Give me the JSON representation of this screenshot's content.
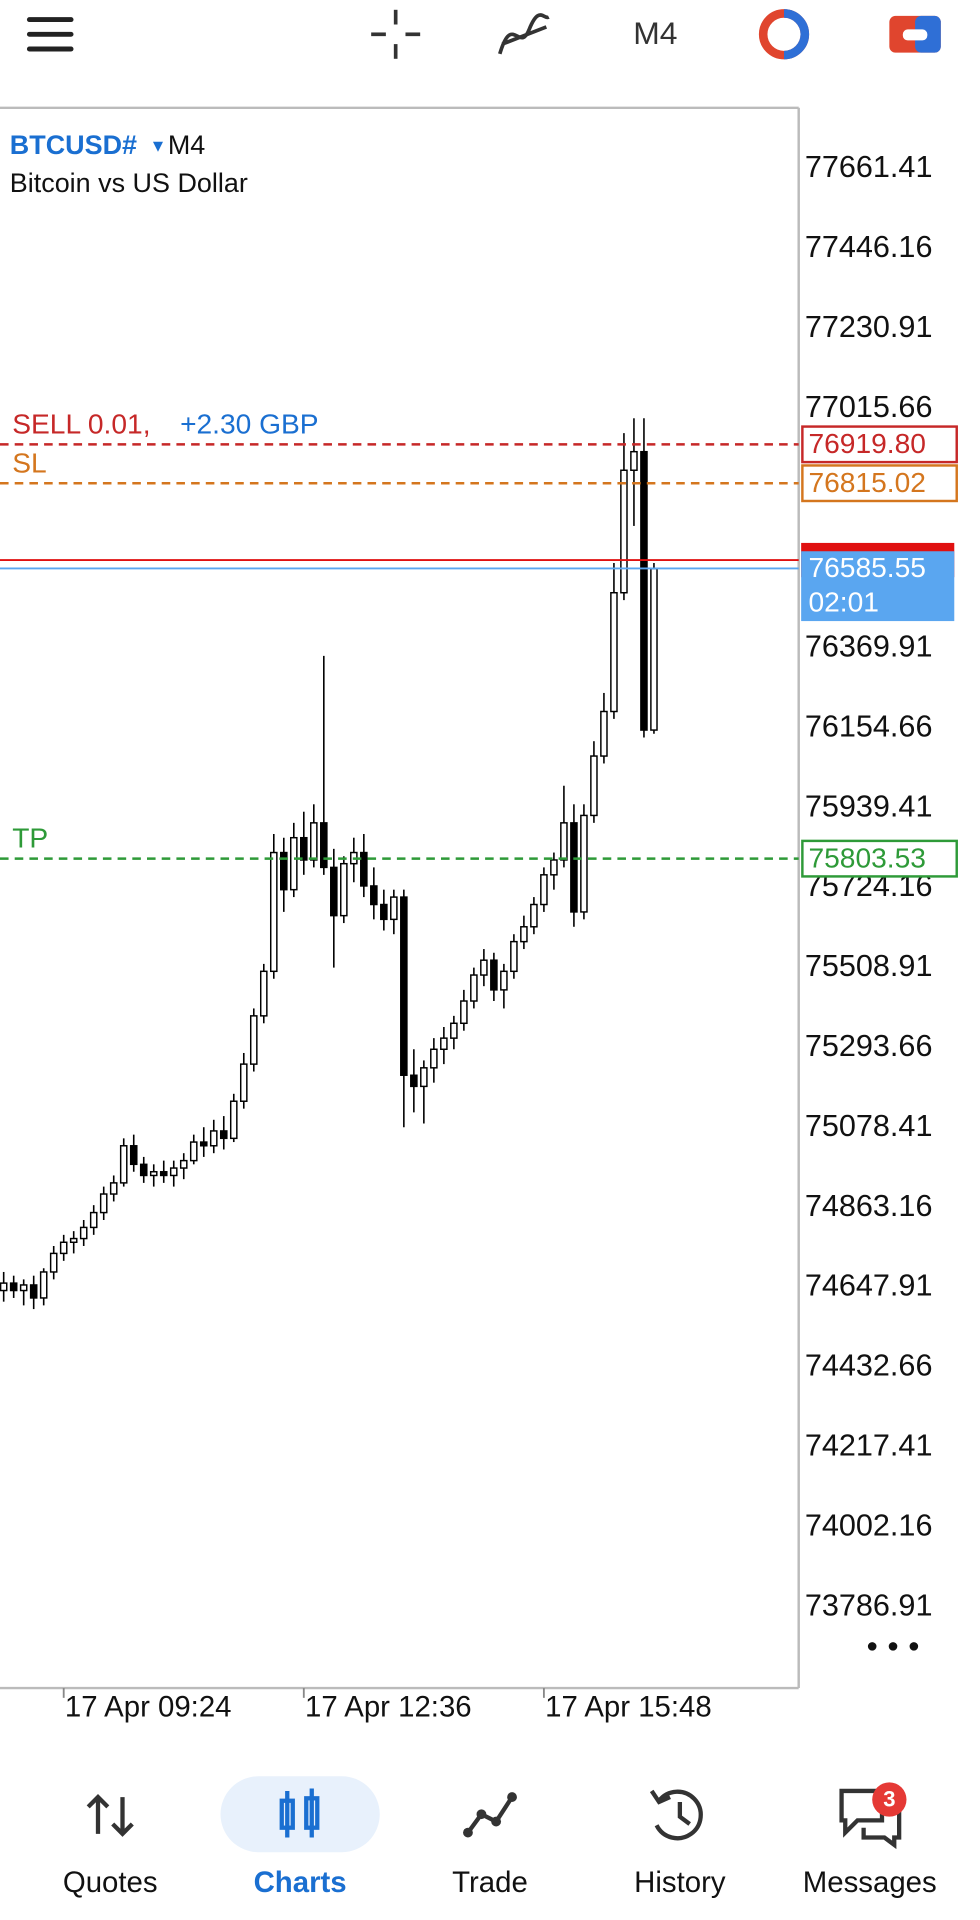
{
  "toolbar": {
    "timeframe": "M4"
  },
  "chart_data": {
    "type": "candlestick",
    "symbol": "BTCUSD#",
    "timeframe": "M4",
    "description": "Bitcoin vs US Dollar",
    "categories": [
      null,
      null,
      null,
      null,
      null,
      null,
      "17 Apr 09:24",
      null,
      null,
      null,
      null,
      null,
      null,
      null,
      null,
      null,
      null,
      null,
      null,
      null,
      null,
      null,
      null,
      null,
      null,
      null,
      null,
      null,
      null,
      null,
      "17 Apr 12:36",
      null,
      null,
      null,
      null,
      null,
      null,
      null,
      null,
      null,
      null,
      null,
      null,
      null,
      null,
      null,
      null,
      null,
      null,
      null,
      null,
      null,
      null,
      null,
      "17 Apr 15:48",
      null,
      null,
      null,
      null,
      null,
      null,
      null,
      null,
      null,
      null,
      null
    ],
    "open": [
      74640,
      74660,
      74640,
      74655,
      74620,
      74690,
      74740,
      74770,
      74780,
      74810,
      74850,
      74900,
      74930,
      75030,
      74980,
      74950,
      74960,
      74950,
      74970,
      74990,
      75040,
      75030,
      75070,
      75050,
      75150,
      75250,
      75380,
      75500,
      75820,
      75720,
      75860,
      75800,
      75900,
      75780,
      75650,
      75790,
      75820,
      75730,
      75680,
      75640,
      75700,
      75220,
      75190,
      75240,
      75290,
      75320,
      75360,
      75420,
      75490,
      75530,
      75450,
      75500,
      75580,
      75620,
      75680,
      75760,
      75800,
      75900,
      75660,
      75920,
      76080,
      76200,
      76520,
      76850,
      76900,
      76150
    ],
    "high": [
      74690,
      74680,
      74670,
      74680,
      74700,
      74760,
      74790,
      74800,
      74830,
      74870,
      74920,
      74950,
      75050,
      75060,
      75000,
      74980,
      74990,
      74990,
      75010,
      75060,
      75080,
      75100,
      75110,
      75170,
      75280,
      75400,
      75520,
      75870,
      75860,
      75900,
      75930,
      75950,
      76350,
      75830,
      75810,
      75860,
      75870,
      75780,
      75720,
      75720,
      75720,
      75290,
      75260,
      75320,
      75350,
      75380,
      75450,
      75510,
      75560,
      75550,
      75520,
      75600,
      75650,
      75700,
      75780,
      75820,
      76000,
      75950,
      75950,
      76120,
      76250,
      76600,
      76950,
      76990,
      76990,
      76600
    ],
    "low": [
      74610,
      74620,
      74600,
      74590,
      74600,
      74670,
      74720,
      74740,
      74760,
      74790,
      74830,
      74880,
      74920,
      74960,
      74930,
      74920,
      74930,
      74920,
      74940,
      74980,
      75000,
      75010,
      75020,
      75040,
      75130,
      75230,
      75360,
      75480,
      75660,
      75700,
      75760,
      75780,
      75760,
      75510,
      75630,
      75740,
      75700,
      75640,
      75610,
      75600,
      75080,
      75120,
      75090,
      75200,
      75250,
      75290,
      75340,
      75400,
      75460,
      75420,
      75400,
      75480,
      75560,
      75600,
      75660,
      75720,
      75780,
      75620,
      75640,
      75900,
      76060,
      76180,
      76500,
      76700,
      76130,
      76140
    ],
    "close": [
      74660,
      74640,
      74655,
      74620,
      74690,
      74740,
      74770,
      74780,
      74810,
      74850,
      74900,
      74930,
      75030,
      74980,
      74950,
      74960,
      74950,
      74970,
      74990,
      75040,
      75030,
      75070,
      75050,
      75150,
      75250,
      75380,
      75500,
      75820,
      75720,
      75860,
      75800,
      75900,
      75780,
      75650,
      75790,
      75820,
      75730,
      75680,
      75640,
      75700,
      75220,
      75190,
      75240,
      75290,
      75320,
      75360,
      75420,
      75490,
      75530,
      75450,
      75500,
      75580,
      75620,
      75680,
      75760,
      75800,
      75900,
      75660,
      75920,
      76080,
      76200,
      76520,
      76850,
      76900,
      76150,
      76585
    ],
    "color": "#000000",
    "up_color": "#ffffff",
    "down_color": "#000000",
    "ylim": [
      73569,
      77826.5
    ],
    "yticks": [
      77661.41,
      77446.16,
      77230.91,
      77015.66,
      76369.91,
      76154.66,
      75939.41,
      75724.16,
      75508.91,
      75293.66,
      75078.41,
      74863.16,
      74647.91,
      74432.66,
      74217.41,
      74002.16,
      73786.91
    ],
    "levels": [
      {
        "label": "SELL 0.01,",
        "price": {
          "value": 76919.8,
          "label": "76919.80"
        },
        "color": "#c62828"
      },
      {
        "label": "SL",
        "price": 76815.02,
        "color": "#d4761e"
      },
      {
        "label": "TP",
        "price": 75803.53,
        "color": "#2e9a38"
      }
    ],
    "profit": "+2.30 GBP",
    "bid": 76585.55,
    "bid_color": "#5aa6f0",
    "ask": 76608,
    "ask_color": "#e01010",
    "countdown": "02:01"
  },
  "nav": {
    "items": [
      "Quotes",
      "Charts",
      "Trade",
      "History",
      "Messages"
    ],
    "active": 1,
    "badge": 3
  }
}
